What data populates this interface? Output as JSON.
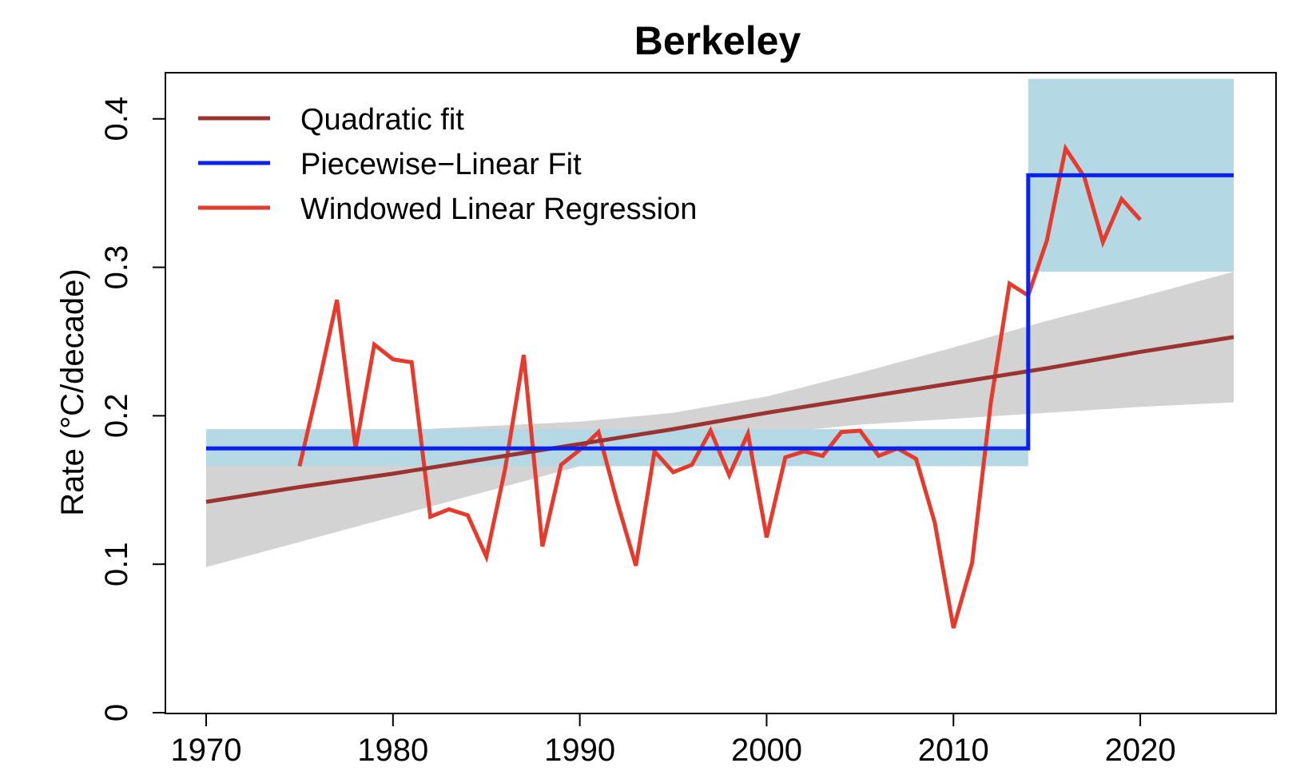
{
  "chart_data": {
    "type": "line",
    "title": "Berkeley",
    "xlabel": "",
    "ylabel": "Rate (°C/decade)",
    "xlim": [
      1970,
      2025
    ],
    "ylim": [
      0,
      0.43
    ],
    "xticks": [
      1970,
      1980,
      1990,
      2000,
      2010,
      2020
    ],
    "yticks": [
      0,
      0.1,
      0.2,
      0.3,
      0.4
    ],
    "x_tick_labels": [
      "1970",
      "1980",
      "1990",
      "2000",
      "2010",
      "2020"
    ],
    "y_tick_labels": [
      "0",
      "0.1",
      "0.2",
      "0.3",
      "0.4"
    ],
    "legend_position": "top-left",
    "colors": {
      "quadratic": "#9b3330",
      "piecewise": "#0a22f0",
      "windowed": "#e53a2c",
      "piecewise_band": "#b4d8e4",
      "quadratic_band": "#d3d3d3"
    },
    "series": [
      {
        "name": "Quadratic fit",
        "key": "quadratic",
        "x": [
          1970,
          1975,
          1980,
          1985,
          1990,
          1995,
          2000,
          2005,
          2010,
          2015,
          2020,
          2025
        ],
        "values": [
          0.142,
          0.152,
          0.161,
          0.171,
          0.181,
          0.191,
          0.202,
          0.212,
          0.222,
          0.232,
          0.243,
          0.253
        ]
      },
      {
        "name": "Piecewise−Linear Fit",
        "key": "piecewise",
        "x": [
          1970,
          2014,
          2014,
          2025
        ],
        "values": [
          0.178,
          0.178,
          0.362,
          0.362
        ]
      },
      {
        "name": "Windowed Linear Regression",
        "key": "windowed",
        "x": [
          1975,
          1976,
          1977,
          1978,
          1979,
          1980,
          1981,
          1982,
          1983,
          1984,
          1985,
          1986,
          1987,
          1988,
          1989,
          1990,
          1991,
          1992,
          1993,
          1994,
          1995,
          1996,
          1997,
          1998,
          1999,
          2000,
          2001,
          2002,
          2003,
          2004,
          2005,
          2006,
          2007,
          2008,
          2009,
          2010,
          2011,
          2012,
          2013,
          2014,
          2015,
          2016,
          2017,
          2018,
          2019,
          2020
        ],
        "values": [
          0.166,
          0.22,
          0.278,
          0.178,
          0.248,
          0.238,
          0.236,
          0.132,
          0.137,
          0.133,
          0.105,
          0.164,
          0.241,
          0.112,
          0.167,
          0.177,
          0.189,
          0.142,
          0.099,
          0.176,
          0.162,
          0.167,
          0.19,
          0.16,
          0.188,
          0.118,
          0.172,
          0.176,
          0.173,
          0.189,
          0.19,
          0.173,
          0.178,
          0.171,
          0.128,
          0.057,
          0.101,
          0.209,
          0.289,
          0.281,
          0.318,
          0.38,
          0.361,
          0.317,
          0.346,
          0.332
        ]
      }
    ],
    "bands": [
      {
        "name": "quadratic-confidence-band",
        "color_key": "quadratic_band",
        "x": [
          1970,
          1975,
          1980,
          1985,
          1990,
          1995,
          2000,
          2005,
          2010,
          2015,
          2020,
          2025
        ],
        "lower": [
          0.098,
          0.115,
          0.132,
          0.149,
          0.166,
          0.178,
          0.188,
          0.194,
          0.198,
          0.202,
          0.206,
          0.209
        ],
        "upper": [
          0.185,
          0.188,
          0.19,
          0.193,
          0.196,
          0.202,
          0.213,
          0.229,
          0.246,
          0.264,
          0.28,
          0.297
        ]
      },
      {
        "name": "piecewise-band-early",
        "color_key": "piecewise_band",
        "x": [
          1970,
          2014
        ],
        "lower": [
          0.166,
          0.166
        ],
        "upper": [
          0.191,
          0.191
        ]
      },
      {
        "name": "piecewise-band-late",
        "color_key": "piecewise_band",
        "x": [
          2014,
          2025
        ],
        "lower": [
          0.297,
          0.297
        ],
        "upper": [
          0.427,
          0.427
        ]
      }
    ]
  }
}
